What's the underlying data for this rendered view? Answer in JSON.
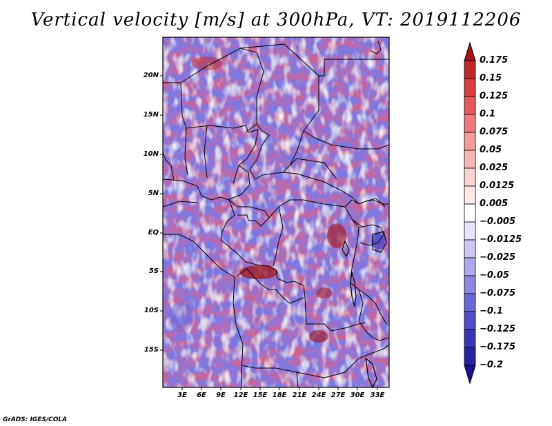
{
  "title": "Vertical velocity [m/s] at 300hPa, VT: 2019112206",
  "map": {
    "variable": "Vertical velocity",
    "units": "m/s",
    "level": "300hPa",
    "valid_time": "2019112206",
    "lat_labels": [
      "20N",
      "15N",
      "10N",
      "5N",
      "EQ",
      "5S",
      "10S",
      "15S"
    ],
    "lon_labels": [
      "3E",
      "6E",
      "9E",
      "12E",
      "15E",
      "18E",
      "21E",
      "24E",
      "27E",
      "30E",
      "33E"
    ],
    "colors": {
      "positive": "#c0282a",
      "negative": "#3c37c8",
      "neutral": "#ffffff",
      "border": "#000000"
    }
  },
  "colorbar": {
    "labels": [
      "0.175",
      "0.15",
      "0.125",
      "0.1",
      "0.075",
      "0.05",
      "0.025",
      "0.0125",
      "0.005",
      "−0.005",
      "−0.0125",
      "−0.025",
      "−0.05",
      "−0.075",
      "−0.1",
      "−0.125",
      "−0.175",
      "−0.2"
    ],
    "colors": [
      "#a0141c",
      "#c0282a",
      "#d83e40",
      "#e65a5c",
      "#ee7a7c",
      "#f49a9a",
      "#f8b6b6",
      "#fcd2d2",
      "#fde8e8",
      "#ffffff",
      "#e6e4fa",
      "#ccc8f4",
      "#aca8ec",
      "#8c86e2",
      "#6c66d6",
      "#524cca",
      "#3a34b8",
      "#2820a0",
      "#1a1090"
    ]
  },
  "footer": "GrADS: IGES/COLA"
}
